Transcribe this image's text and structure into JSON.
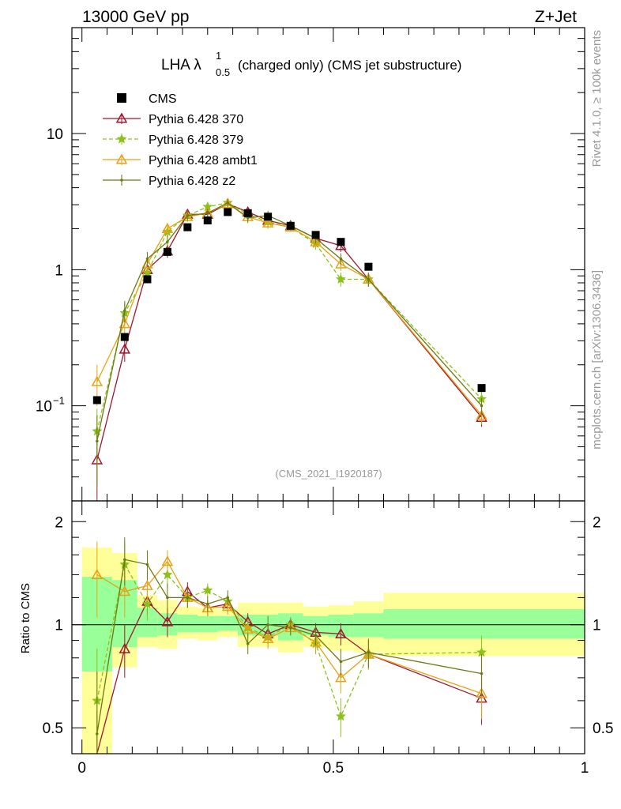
{
  "header": {
    "left": "13000 GeV pp",
    "right": "Z+Jet"
  },
  "side_labels": {
    "rivet": "Rivet 4.1.0, ≥ 100k events",
    "mcplots": "mcplots.cern.ch [arXiv:1306.3436]"
  },
  "chart_data": {
    "type": "scatter",
    "title_main": "LHA λ",
    "title_sup": "1",
    "title_sub": "0.5",
    "title_rest": "(charged only) (CMS jet substructure)",
    "analysis_id": "(CMS_2021_I1920187)",
    "ylabel_ratio": "Ratio to CMS",
    "ylim": [
      0.02,
      60
    ],
    "ratio_ylim": [
      0.42,
      2.3
    ],
    "xlim": [
      -0.02,
      1.0
    ],
    "x_ticks": [
      {
        "v": 0,
        "label": "0"
      },
      {
        "v": 0.5,
        "label": "0.5"
      },
      {
        "v": 1,
        "label": "1"
      }
    ],
    "y_ticks": [
      {
        "v": 10,
        "label": "10"
      },
      {
        "v": 1,
        "label": "1"
      },
      {
        "v": 0.1,
        "label": "10",
        "sup": "−1"
      }
    ],
    "ratio_ticks": [
      {
        "v": 2,
        "label": "2"
      },
      {
        "v": 1,
        "label": "1"
      },
      {
        "v": 0.5,
        "label": "0.5"
      }
    ],
    "x": [
      0.03,
      0.085,
      0.13,
      0.17,
      0.21,
      0.25,
      0.29,
      0.33,
      0.37,
      0.415,
      0.465,
      0.515,
      0.57,
      0.795
    ],
    "data": {
      "name": "CMS",
      "values": [
        0.11,
        0.32,
        0.85,
        1.35,
        2.05,
        2.3,
        2.65,
        2.6,
        2.45,
        2.1,
        1.8,
        1.6,
        1.05,
        0.135
      ]
    },
    "ratio_bands": [
      {
        "x0": 0.0,
        "x1": 0.06,
        "g": [
          0.73,
          1.38
        ],
        "y": [
          0.42,
          1.68
        ]
      },
      {
        "x0": 0.06,
        "x1": 0.11,
        "g": [
          0.86,
          1.35
        ],
        "y": [
          0.75,
          1.62
        ]
      },
      {
        "x0": 0.11,
        "x1": 0.15,
        "g": [
          0.92,
          1.12
        ],
        "y": [
          0.86,
          1.22
        ]
      },
      {
        "x0": 0.15,
        "x1": 0.19,
        "g": [
          0.93,
          1.08
        ],
        "y": [
          0.85,
          1.18
        ]
      },
      {
        "x0": 0.19,
        "x1": 0.23,
        "g": [
          0.95,
          1.07
        ],
        "y": [
          0.91,
          1.13
        ]
      },
      {
        "x0": 0.23,
        "x1": 0.27,
        "g": [
          0.95,
          1.06
        ],
        "y": [
          0.9,
          1.12
        ]
      },
      {
        "x0": 0.27,
        "x1": 0.31,
        "g": [
          0.96,
          1.06
        ],
        "y": [
          0.92,
          1.11
        ]
      },
      {
        "x0": 0.31,
        "x1": 0.35,
        "g": [
          0.93,
          1.07
        ],
        "y": [
          0.86,
          1.16
        ]
      },
      {
        "x0": 0.35,
        "x1": 0.39,
        "g": [
          0.93,
          1.07
        ],
        "y": [
          0.86,
          1.16
        ]
      },
      {
        "x0": 0.39,
        "x1": 0.44,
        "g": [
          0.9,
          1.08
        ],
        "y": [
          0.83,
          1.16
        ]
      },
      {
        "x0": 0.44,
        "x1": 0.49,
        "g": [
          0.93,
          1.06
        ],
        "y": [
          0.86,
          1.13
        ]
      },
      {
        "x0": 0.49,
        "x1": 0.54,
        "g": [
          0.92,
          1.07
        ],
        "y": [
          0.84,
          1.14
        ]
      },
      {
        "x0": 0.54,
        "x1": 0.6,
        "g": [
          0.92,
          1.08
        ],
        "y": [
          0.83,
          1.17
        ]
      },
      {
        "x0": 0.6,
        "x1": 1.0,
        "g": [
          0.91,
          1.11
        ],
        "y": [
          0.81,
          1.24
        ]
      }
    ],
    "series": [
      {
        "name": "Pythia 6.428 370",
        "color": "#a0162e",
        "marker": "triangle-open",
        "dashed": false,
        "values": [
          0.04,
          0.26,
          1.0,
          1.37,
          2.55,
          2.55,
          3.05,
          2.65,
          2.3,
          2.1,
          1.7,
          1.5,
          0.85,
          0.082
        ],
        "errs": [
          0.022,
          0.05,
          0.15,
          0.15,
          0.2,
          0.2,
          0.2,
          0.2,
          0.2,
          0.15,
          0.15,
          0.15,
          0.1,
          0.012
        ],
        "ratio": [
          0.36,
          0.85,
          1.17,
          1.02,
          1.25,
          1.12,
          1.15,
          1.02,
          0.94,
          1.0,
          0.95,
          0.94,
          0.82,
          0.61
        ],
        "ratio_errs": [
          0.2,
          0.15,
          0.1,
          0.1,
          0.08,
          0.06,
          0.06,
          0.06,
          0.06,
          0.05,
          0.06,
          0.07,
          0.08,
          0.1
        ]
      },
      {
        "name": "Pythia 6.428 379",
        "color": "#8ac21a",
        "marker": "star",
        "dashed": true,
        "values": [
          0.065,
          0.48,
          0.95,
          1.9,
          2.5,
          2.9,
          3.1,
          2.55,
          2.25,
          2.05,
          1.55,
          0.85,
          0.85,
          0.112
        ],
        "errs": [
          0.03,
          0.09,
          0.15,
          0.2,
          0.2,
          0.2,
          0.2,
          0.2,
          0.2,
          0.15,
          0.15,
          0.1,
          0.1,
          0.015
        ],
        "ratio": [
          0.6,
          1.5,
          1.15,
          1.4,
          1.2,
          1.26,
          1.17,
          0.98,
          0.92,
          1.0,
          0.88,
          0.54,
          0.82,
          0.83
        ],
        "ratio_errs": [
          0.25,
          0.25,
          0.12,
          0.12,
          0.08,
          0.06,
          0.06,
          0.06,
          0.06,
          0.05,
          0.06,
          0.07,
          0.08,
          0.1
        ]
      },
      {
        "name": "Pythia 6.428 ambt1",
        "color": "#e8a214",
        "marker": "triangle-open",
        "dashed": false,
        "values": [
          0.15,
          0.4,
          1.1,
          2.0,
          2.45,
          2.6,
          3.05,
          2.45,
          2.2,
          2.05,
          1.6,
          1.1,
          0.85,
          0.085
        ],
        "errs": [
          0.05,
          0.07,
          0.15,
          0.2,
          0.2,
          0.2,
          0.2,
          0.2,
          0.2,
          0.15,
          0.15,
          0.12,
          0.1,
          0.012
        ],
        "ratio": [
          1.4,
          1.25,
          1.3,
          1.53,
          1.2,
          1.12,
          1.13,
          0.97,
          0.91,
          0.98,
          0.89,
          0.7,
          0.82,
          0.63
        ],
        "ratio_errs": [
          0.35,
          0.2,
          0.12,
          0.12,
          0.08,
          0.06,
          0.06,
          0.06,
          0.06,
          0.05,
          0.06,
          0.07,
          0.08,
          0.1
        ]
      },
      {
        "name": "Pythia 6.428 z2",
        "color": "#6b7a12",
        "marker": "dot",
        "dashed": false,
        "values": [
          0.055,
          0.5,
          1.2,
          1.6,
          2.5,
          2.6,
          3.1,
          2.4,
          2.5,
          2.1,
          1.7,
          1.2,
          0.85,
          0.1
        ],
        "errs": [
          0.03,
          0.09,
          0.15,
          0.2,
          0.2,
          0.2,
          0.2,
          0.2,
          0.2,
          0.15,
          0.15,
          0.12,
          0.1,
          0.014
        ],
        "ratio": [
          0.48,
          1.55,
          1.5,
          1.2,
          1.2,
          1.15,
          1.2,
          0.88,
          1.0,
          0.98,
          0.93,
          0.78,
          0.83,
          0.72
        ],
        "ratio_errs": [
          0.25,
          0.25,
          0.15,
          0.12,
          0.08,
          0.06,
          0.06,
          0.06,
          0.06,
          0.05,
          0.06,
          0.07,
          0.08,
          0.1
        ]
      }
    ]
  }
}
